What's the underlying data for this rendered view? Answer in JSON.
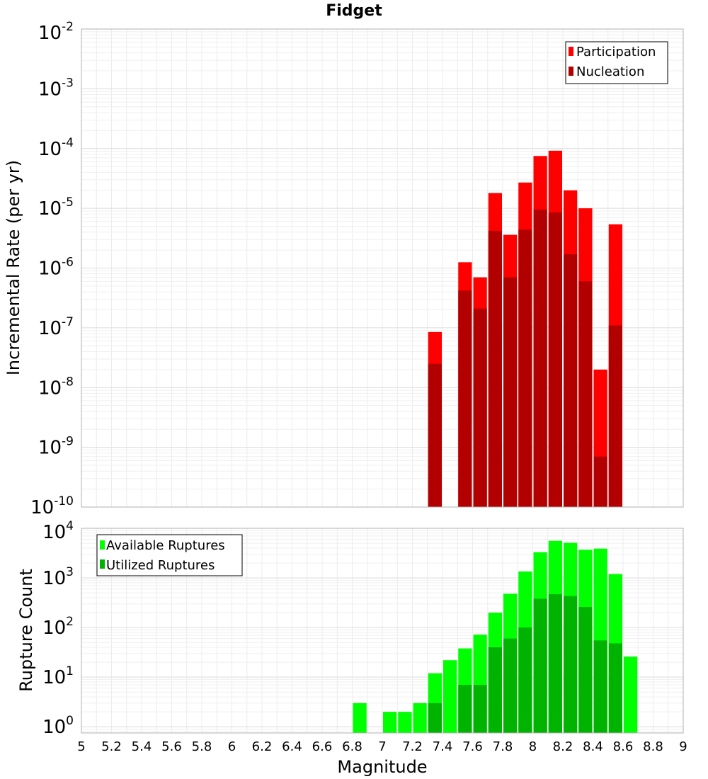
{
  "chart_data": [
    {
      "type": "bar",
      "title": "Fidget",
      "ylabel": "Incremental Rate (per yr)",
      "yscale": "log",
      "ylim": [
        1e-10,
        0.01
      ],
      "xlim": [
        5,
        9
      ],
      "grid": true,
      "legend_position": "top-right",
      "bin_width": 0.1,
      "ytick_labels": [
        {
          "base": "10",
          "exp": "-10",
          "value": 1e-10
        },
        {
          "base": "10",
          "exp": "-9",
          "value": 1e-09
        },
        {
          "base": "10",
          "exp": "-8",
          "value": 1e-08
        },
        {
          "base": "10",
          "exp": "-7",
          "value": 1e-07
        },
        {
          "base": "10",
          "exp": "-6",
          "value": 1e-06
        },
        {
          "base": "10",
          "exp": "-5",
          "value": 1e-05
        },
        {
          "base": "10",
          "exp": "-4",
          "value": 0.0001
        },
        {
          "base": "10",
          "exp": "-3",
          "value": 0.001
        },
        {
          "base": "10",
          "exp": "-2",
          "value": 0.01
        }
      ],
      "x": [
        7.35,
        7.55,
        7.65,
        7.75,
        7.85,
        7.95,
        8.05,
        8.15,
        8.25,
        8.35,
        8.45,
        8.55
      ],
      "series": [
        {
          "name": "Participation",
          "color": "#ff0000",
          "values": [
            8.5e-08,
            1.25e-06,
            7e-07,
            1.8e-05,
            3.6e-06,
            2.7e-05,
            7.5e-05,
            9.2e-05,
            2e-05,
            1e-05,
            2e-08,
            5.4e-06
          ]
        },
        {
          "name": "Nucleation",
          "color": "#b20000",
          "values": [
            2.5e-08,
            4.2e-07,
            2.1e-07,
            4.2e-06,
            7e-07,
            4.4e-06,
            9.5e-06,
            8.5e-06,
            1.7e-06,
            6e-07,
            7e-10,
            1.1e-07
          ]
        }
      ]
    },
    {
      "type": "bar",
      "xlabel": "Magnitude",
      "ylabel": "Rupture Count",
      "yscale": "log",
      "ylim": [
        0.75,
        10000
      ],
      "xlim": [
        5,
        9
      ],
      "grid": true,
      "legend_position": "top-left",
      "bin_width": 0.1,
      "xtick_labels": [
        "5",
        "5.2",
        "5.4",
        "5.6",
        "5.8",
        "6",
        "6.2",
        "6.4",
        "6.6",
        "6.8",
        "7",
        "7.2",
        "7.4",
        "7.6",
        "7.8",
        "8",
        "8.2",
        "8.4",
        "8.6",
        "8.8",
        "9"
      ],
      "ytick_labels": [
        {
          "base": "10",
          "exp": "0",
          "value": 1
        },
        {
          "base": "10",
          "exp": "1",
          "value": 10
        },
        {
          "base": "10",
          "exp": "2",
          "value": 100
        },
        {
          "base": "10",
          "exp": "3",
          "value": 1000
        },
        {
          "base": "10",
          "exp": "4",
          "value": 10000
        }
      ],
      "x": [
        6.85,
        7.05,
        7.15,
        7.25,
        7.35,
        7.45,
        7.55,
        7.65,
        7.75,
        7.85,
        7.95,
        8.05,
        8.15,
        8.25,
        8.35,
        8.45,
        8.55,
        8.65
      ],
      "series": [
        {
          "name": "Available Ruptures",
          "color": "#00ff00",
          "values": [
            3,
            2,
            2,
            3,
            12,
            22,
            38,
            72,
            200,
            480,
            1350,
            3300,
            5600,
            5100,
            3700,
            3900,
            1200,
            26
          ]
        },
        {
          "name": "Utilized Ruptures",
          "color": "#00b300",
          "values": [
            null,
            null,
            null,
            null,
            3,
            null,
            7,
            7,
            40,
            60,
            100,
            380,
            470,
            430,
            260,
            55,
            48,
            null
          ]
        }
      ]
    }
  ]
}
